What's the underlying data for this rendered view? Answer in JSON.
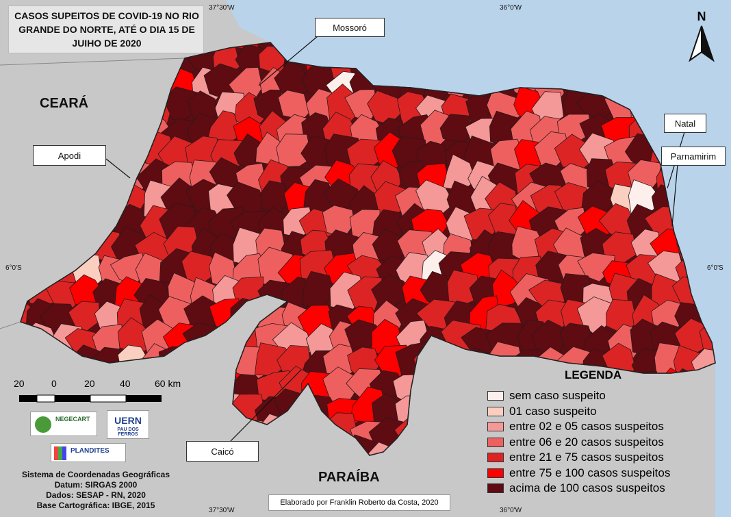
{
  "title": "CASOS SUPEITOS DE COVID-19 NO RIO GRANDE DO NORTE, ATÉ O DIA 15 DE JUIHO DE 2020",
  "coordinates": {
    "top_left": "37°30'W",
    "top_right": "36°0'W",
    "bottom_left": "37°30'W",
    "bottom_right": "36°0'W",
    "left_lat": "6°0'S",
    "right_lat": "6°0'S"
  },
  "regions": {
    "ceara": "CEARÁ",
    "paraiba": "PARAÍBA"
  },
  "cities": [
    "Mossoró",
    "Apodi",
    "Natal",
    "Parnamirim",
    "Caicó"
  ],
  "north_label": "N",
  "scale": {
    "labels": [
      "20",
      "0",
      "20",
      "40",
      "60 km"
    ]
  },
  "legend": {
    "title": "LEGENDA",
    "items": [
      {
        "label": "sem caso suspeito",
        "color": "#fdf0ec"
      },
      {
        "label": "01 caso suspeito",
        "color": "#fbcfc0"
      },
      {
        "label": "entre 02 e 05 casos suspeitos",
        "color": "#f49898"
      },
      {
        "label": "entre 06 e 20 casos suspeitos",
        "color": "#ee6060"
      },
      {
        "label": "entre 21 e 75 casos suspeitos",
        "color": "#dc2424"
      },
      {
        "label": "entre 75 e 100 casos suspeitos",
        "color": "#ff0000"
      },
      {
        "label": "acima de 100 casos suspeitos",
        "color": "#5e0b12"
      }
    ]
  },
  "logos": {
    "negecart": "NEGECART",
    "uern": "UERN",
    "uern_sub": "PAU DOS FERROS",
    "plandites": "PLANDITES"
  },
  "info": [
    "Sistema de Coordenadas Geográficas",
    "Datum: SIRGAS 2000",
    "Dados: SESAP - RN, 2020",
    "Base Cartográfica: IBGE, 2015"
  ],
  "credit": "Elaborado por Franklin Roberto da Costa, 2020",
  "colors": {
    "ocean": "#b9d3ea",
    "land_outside": "#c8c8c8",
    "boundary": "#222222"
  }
}
